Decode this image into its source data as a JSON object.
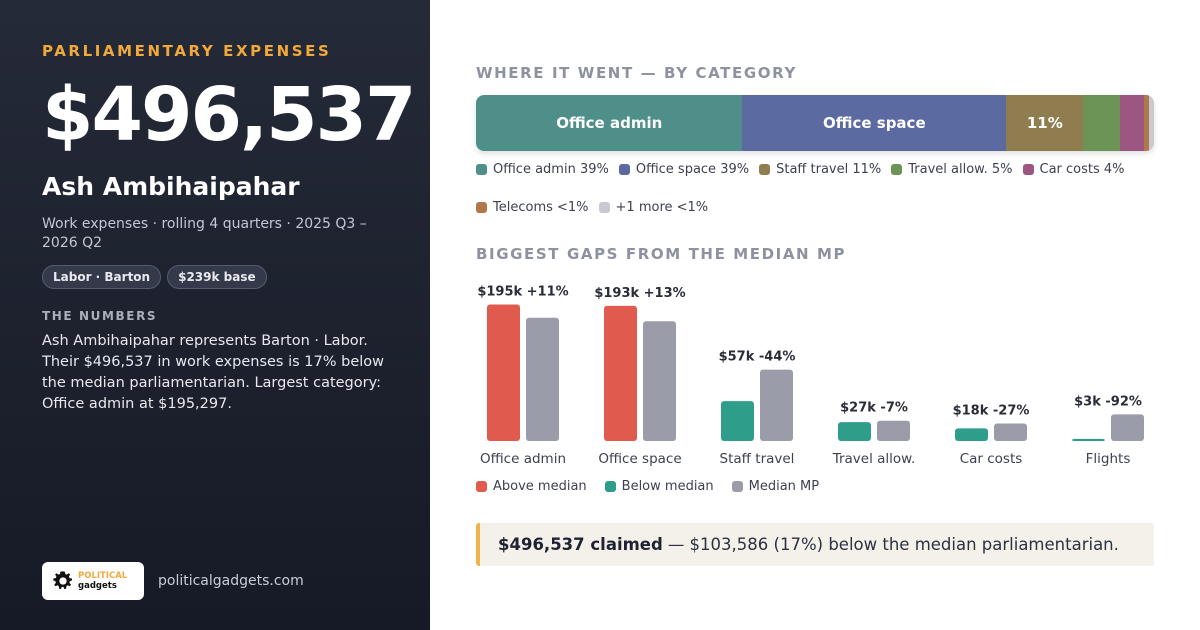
{
  "left": {
    "kicker": "PARLIAMENTARY EXPENSES",
    "amount": "$496,537",
    "name": "Ash Ambihaipahar",
    "subtitle": "Work expenses · rolling 4 quarters · 2025 Q3 – 2026 Q2",
    "chips": [
      "Labor · Barton",
      "$239k base"
    ],
    "numbers_heading": "THE NUMBERS",
    "numbers_body": "Ash Ambihaipahar represents Barton · Labor. Their $496,537 in work expenses is 17% below the median parliamentarian. Largest category: Office admin at $195,297.",
    "logo_line1": "POLITICAL",
    "logo_line2": "gadgets",
    "site": "politicalgadgets.com"
  },
  "category": {
    "heading": "WHERE IT WENT — BY CATEGORY",
    "segments": [
      {
        "label": "Office admin",
        "share": 39.3,
        "color": "#4e8f8a",
        "show": "Office admin"
      },
      {
        "label": "Office space",
        "share": 38.9,
        "color": "#5b6aa0",
        "show": "Office space"
      },
      {
        "label": "Staff travel",
        "share": 11.4,
        "color": "#8f7d50",
        "show": "11%"
      },
      {
        "label": "Travel allow.",
        "share": 5.4,
        "color": "#6b9456",
        "show": ""
      },
      {
        "label": "Car costs",
        "share": 3.6,
        "color": "#9c5682",
        "show": ""
      },
      {
        "label": "Telecoms",
        "share": 0.7,
        "color": "#b0784a",
        "show": ""
      },
      {
        "label": "+1 more",
        "share": 0.7,
        "color": "#c8cacf",
        "show": ""
      }
    ],
    "legend": [
      {
        "text": "Office admin 39%",
        "color": "#4e8f8a"
      },
      {
        "text": "Office space 39%",
        "color": "#5b6aa0"
      },
      {
        "text": "Staff travel 11%",
        "color": "#8f7d50"
      },
      {
        "text": "Travel allow. 5%",
        "color": "#6b9456"
      },
      {
        "text": "Car costs 4%",
        "color": "#9c5682"
      },
      {
        "text": "Telecoms <1%",
        "color": "#b0784a"
      },
      {
        "text": "+1 more <1%",
        "color": "#c8cacf"
      }
    ]
  },
  "gaps": {
    "heading": "BIGGEST GAPS FROM THE MEDIAN MP",
    "legend": [
      {
        "text": "Above median",
        "color": "#e05a4e"
      },
      {
        "text": "Below median",
        "color": "#2e9e8a"
      },
      {
        "text": "Median MP",
        "color": "#9a9caa"
      }
    ]
  },
  "chart_data": {
    "type": "bar",
    "categories": [
      "Office admin",
      "Office space",
      "Staff travel",
      "Travel allow.",
      "Car costs",
      "Flights"
    ],
    "series": [
      {
        "name": "MP",
        "values": [
          195,
          193,
          57,
          27,
          18,
          3
        ]
      },
      {
        "name": "Median MP",
        "values": [
          176,
          171,
          102,
          29,
          25,
          38
        ]
      }
    ],
    "value_labels": [
      "$195k +11%",
      "$193k +13%",
      "$57k -44%",
      "$27k -7%",
      "$18k -27%",
      "$3k -92%"
    ],
    "colors": {
      "above": "#e05a4e",
      "below": "#2e9e8a",
      "median": "#9a9caa"
    },
    "ylim": [
      0,
      200
    ],
    "unit": "$k"
  },
  "callout": {
    "bold": "$496,537 claimed",
    "rest": "— $103,586 (17%) below the median parliamentarian."
  }
}
